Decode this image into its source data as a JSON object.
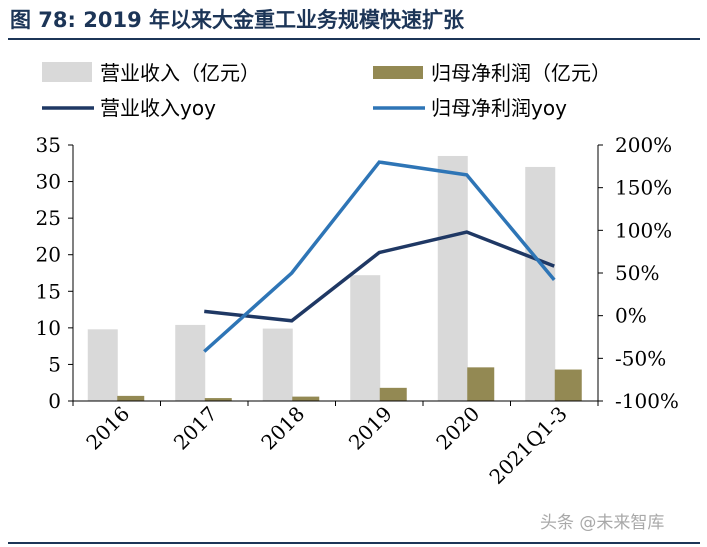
{
  "header": {
    "title": "图 78:  2019 年以来大金重工业务规模快速扩张"
  },
  "watermark": "头条 @未来智库",
  "chart_data": {
    "type": "bar",
    "categories": [
      "2016",
      "2017",
      "2018",
      "2019",
      "2020",
      "2021Q1-3"
    ],
    "series": [
      {
        "name": "营业收入（亿元）",
        "type": "bar",
        "axis": "left",
        "color": "#d9d9d9",
        "values": [
          9.8,
          10.4,
          9.9,
          17.2,
          33.5,
          32.0
        ]
      },
      {
        "name": "归母净利润（亿元）",
        "type": "bar",
        "axis": "left",
        "color": "#938953",
        "values": [
          0.7,
          0.4,
          0.6,
          1.8,
          4.6,
          4.3
        ]
      },
      {
        "name": "营业收入yoy",
        "type": "line",
        "axis": "right",
        "color": "#1f3864",
        "values": [
          null,
          5,
          -6,
          74,
          98,
          58
        ]
      },
      {
        "name": "归母净利润yoy",
        "type": "line",
        "axis": "right",
        "color": "#2e75b6",
        "values": [
          null,
          -42,
          50,
          180,
          165,
          42
        ]
      }
    ],
    "y_left": {
      "min": 0,
      "max": 35,
      "ticks": [
        0,
        5,
        10,
        15,
        20,
        25,
        30,
        35
      ]
    },
    "y_right": {
      "min": -100,
      "max": 200,
      "ticks": [
        -100,
        -50,
        0,
        50,
        100,
        150,
        200
      ],
      "tick_labels": [
        "-100%",
        "-50%",
        "0%",
        "50%",
        "100%",
        "150%",
        "200%"
      ]
    },
    "legend_position": "top",
    "grid": false
  }
}
